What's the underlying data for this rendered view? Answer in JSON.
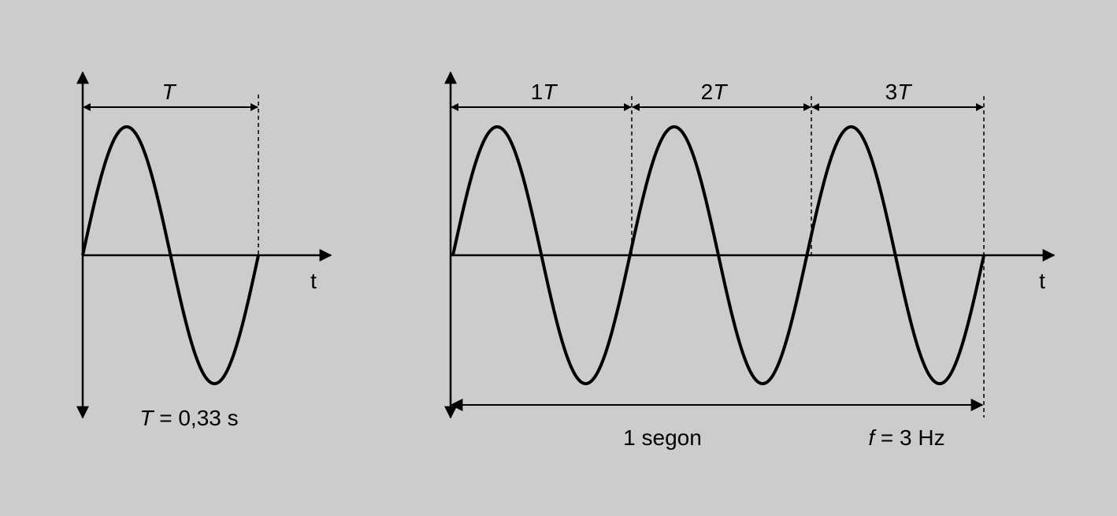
{
  "colors": {
    "background": "#cccccc",
    "ink": "#000000"
  },
  "left_panel": {
    "t_axis_label": "t",
    "period_label": "T",
    "caption": {
      "symbol": "T",
      "rest": " = 0,33 s"
    },
    "cycles": 1
  },
  "right_panel": {
    "t_axis_label": "t",
    "period_labels": [
      {
        "num": "1",
        "sym": "T"
      },
      {
        "num": "2",
        "sym": "T"
      },
      {
        "num": "3",
        "sym": "T"
      }
    ],
    "duration_label": "1 segon",
    "frequency": {
      "symbol": "f",
      "rest": " = 3 Hz"
    },
    "cycles": 3
  }
}
